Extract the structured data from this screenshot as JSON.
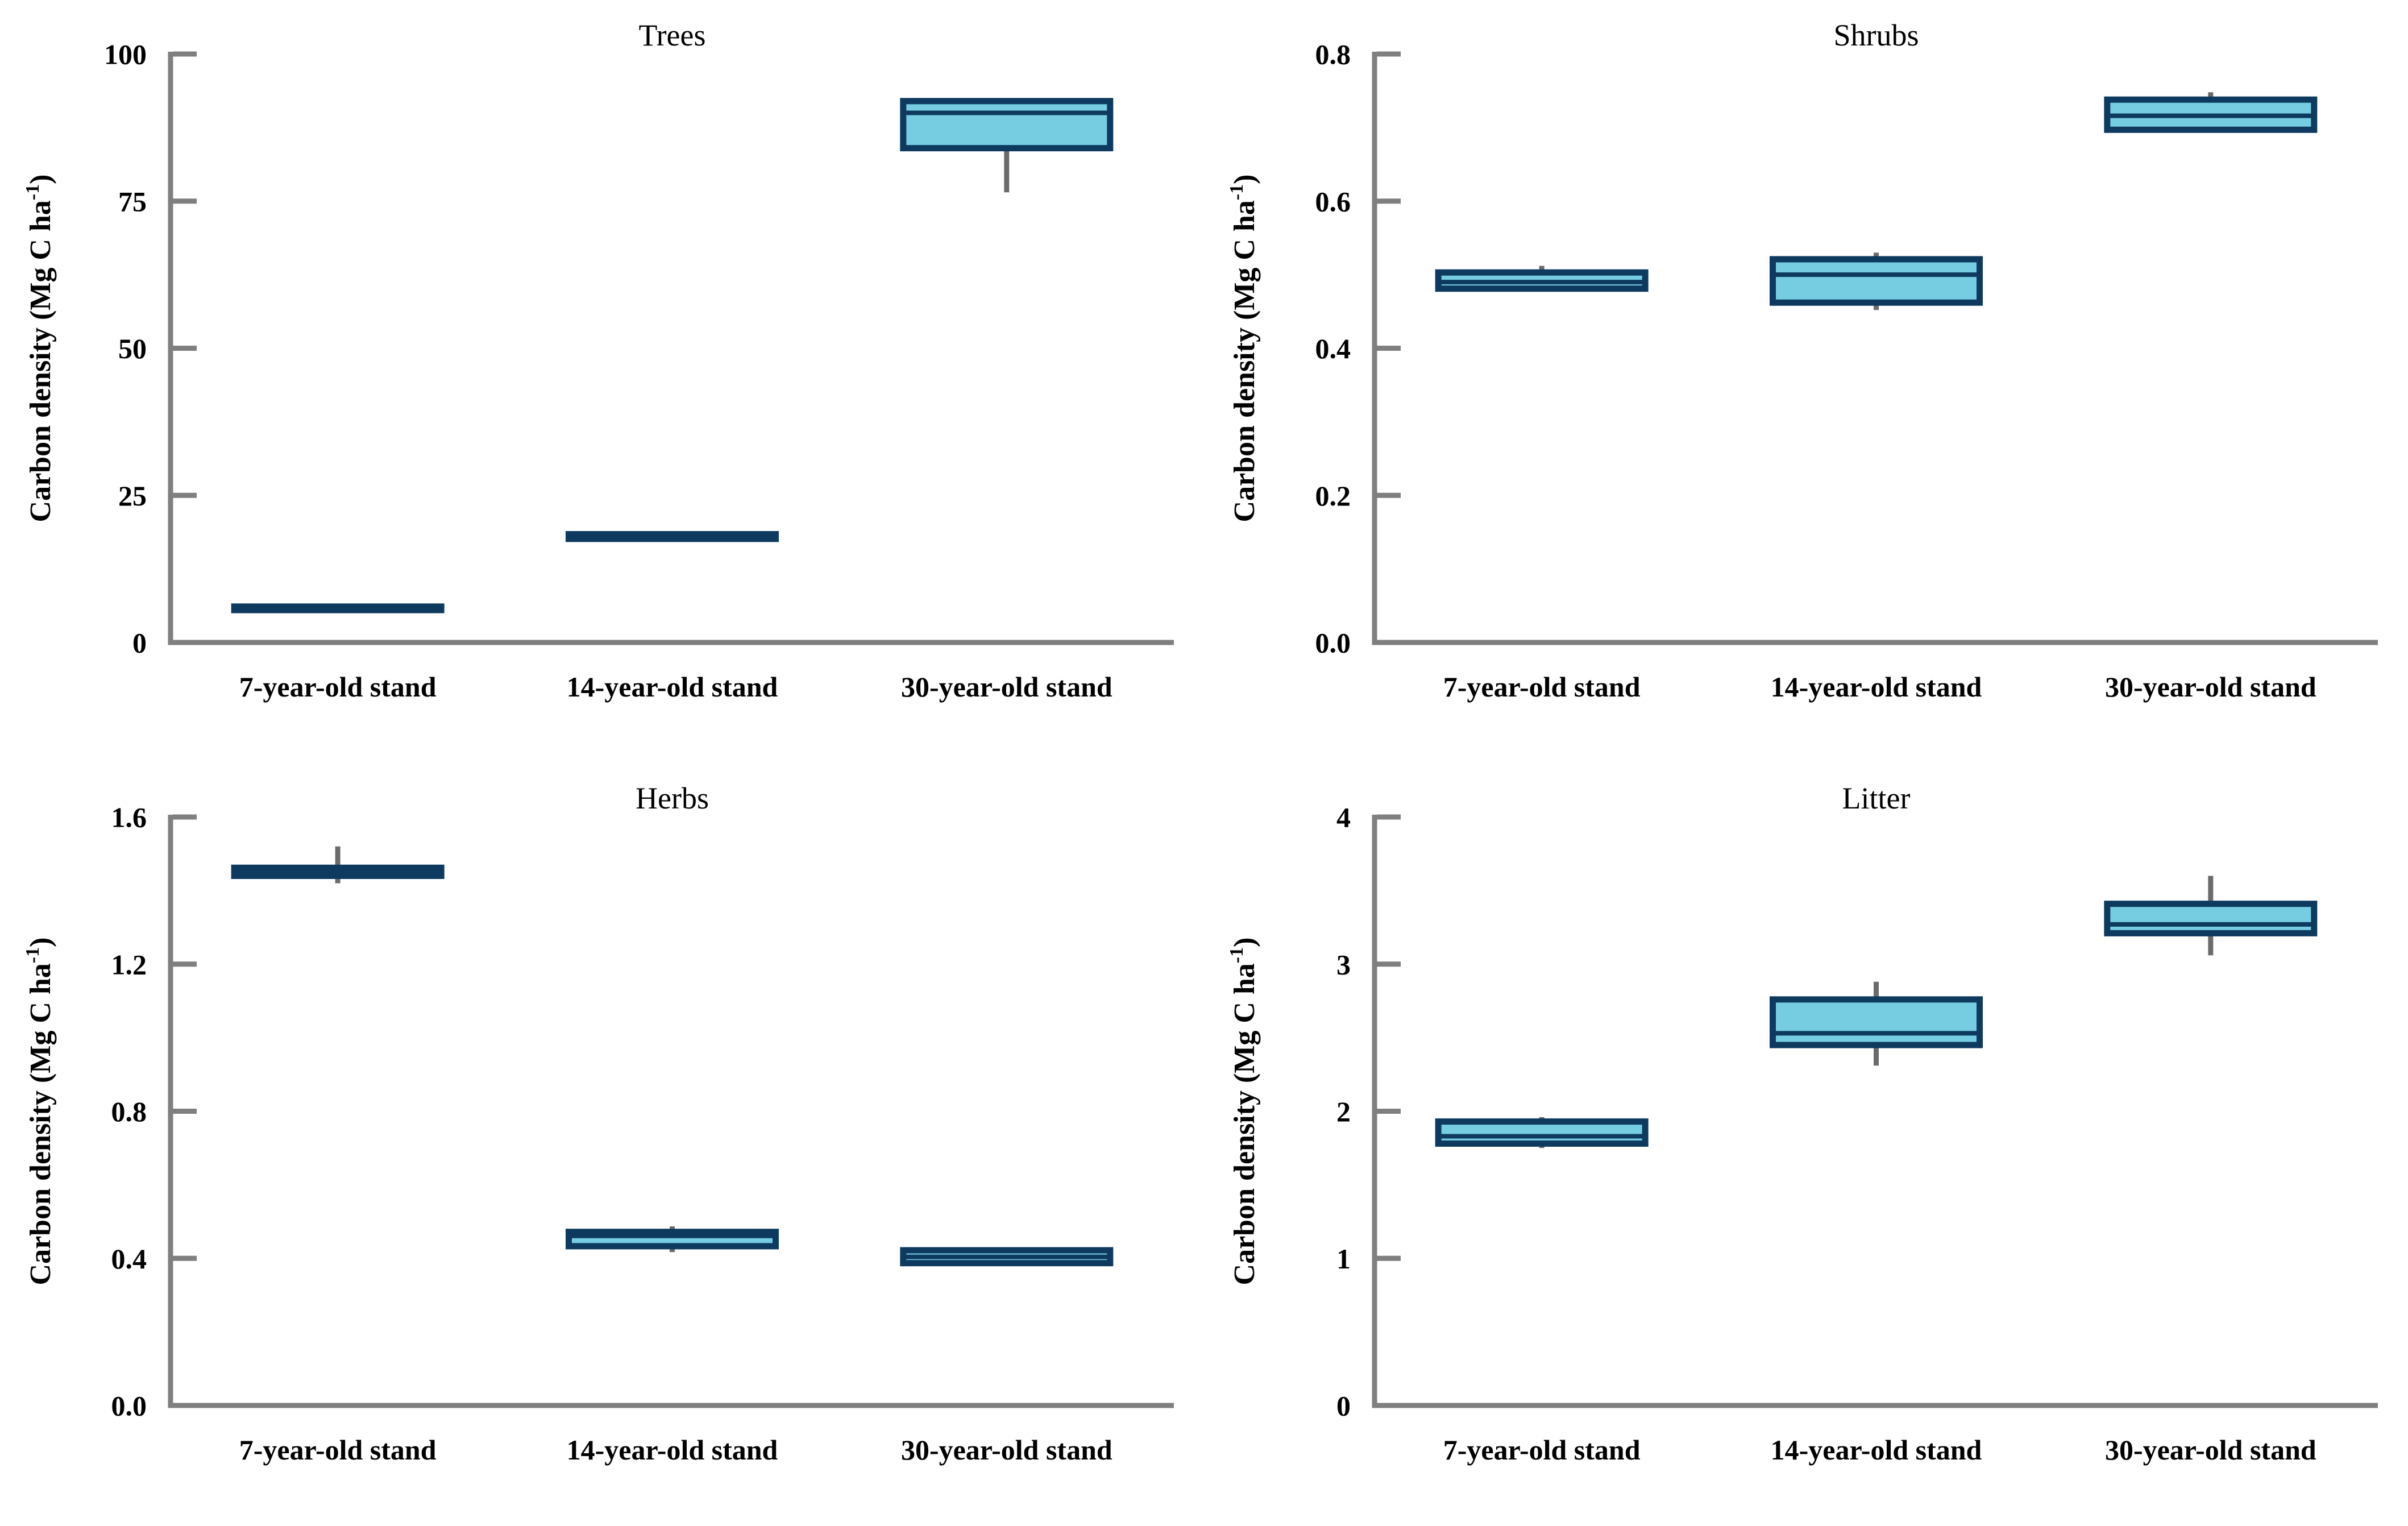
{
  "figure": {
    "ylabel": {
      "prefix": "Carbon density (Mg C ha",
      "sup": "-1",
      "suffix": ")"
    },
    "categories": [
      "7-year-old stand",
      "14-year-old stand",
      "30-year-old stand"
    ],
    "colors": {
      "box_fill": "#76CDE1",
      "box_border": "#0D3A5E",
      "whisker": "#6B6B6B",
      "axis": "#7F7F7F",
      "text": "#000000",
      "background": "#FFFFFF"
    }
  },
  "chart_data": [
    {
      "type": "box",
      "title": "Trees",
      "ylabel": "Carbon density (Mg C ha-1)",
      "ylim": [
        0,
        100
      ],
      "yticks": [
        {
          "v": 0,
          "label": "0"
        },
        {
          "v": 25,
          "label": "25"
        },
        {
          "v": 50,
          "label": "50"
        },
        {
          "v": 75,
          "label": "75"
        },
        {
          "v": 100,
          "label": "100"
        }
      ],
      "boxes": [
        {
          "category": "7-year-old stand",
          "whisker_low": 5.2,
          "q1": 5.5,
          "median": 5.8,
          "q3": 6.1,
          "whisker_high": 6.4
        },
        {
          "category": "14-year-old stand",
          "whisker_low": 17.4,
          "q1": 17.6,
          "median": 18.0,
          "q3": 18.4,
          "whisker_high": 18.6
        },
        {
          "category": "30-year-old stand",
          "whisker_low": 76.5,
          "q1": 84.0,
          "median": 90.0,
          "q3": 92.0,
          "whisker_high": 92.5
        }
      ]
    },
    {
      "type": "box",
      "title": "Shrubs",
      "ylabel": "Carbon density (Mg C ha-1)",
      "ylim": [
        0,
        0.8
      ],
      "yticks": [
        {
          "v": 0.0,
          "label": "0.0"
        },
        {
          "v": 0.2,
          "label": "0.2"
        },
        {
          "v": 0.4,
          "label": "0.4"
        },
        {
          "v": 0.6,
          "label": "0.6"
        },
        {
          "v": 0.8,
          "label": "0.8"
        }
      ],
      "boxes": [
        {
          "category": "7-year-old stand",
          "whisker_low": 0.478,
          "q1": 0.481,
          "median": 0.49,
          "q3": 0.503,
          "whisker_high": 0.512
        },
        {
          "category": "14-year-old stand",
          "whisker_low": 0.452,
          "q1": 0.462,
          "median": 0.5,
          "q3": 0.521,
          "whisker_high": 0.53
        },
        {
          "category": "30-year-old stand",
          "whisker_low": 0.697,
          "q1": 0.697,
          "median": 0.716,
          "q3": 0.738,
          "whisker_high": 0.748
        }
      ]
    },
    {
      "type": "box",
      "title": "Herbs",
      "ylabel": "Carbon density (Mg C ha-1)",
      "ylim": [
        0,
        1.6
      ],
      "yticks": [
        {
          "v": 0.0,
          "label": "0.0"
        },
        {
          "v": 0.4,
          "label": "0.4"
        },
        {
          "v": 0.8,
          "label": "0.8"
        },
        {
          "v": 1.2,
          "label": "1.2"
        },
        {
          "v": 1.6,
          "label": "1.6"
        }
      ],
      "boxes": [
        {
          "category": "7-year-old stand",
          "whisker_low": 1.42,
          "q1": 1.44,
          "median": 1.451,
          "q3": 1.462,
          "whisker_high": 1.52
        },
        {
          "category": "14-year-old stand",
          "whisker_low": 0.417,
          "q1": 0.433,
          "median": 0.461,
          "q3": 0.472,
          "whisker_high": 0.487
        },
        {
          "category": "30-year-old stand",
          "whisker_low": 0.387,
          "q1": 0.387,
          "median": 0.404,
          "q3": 0.422,
          "whisker_high": 0.422
        }
      ]
    },
    {
      "type": "box",
      "title": "Litter",
      "ylabel": "Carbon density (Mg C ha-1)",
      "ylim": [
        0,
        4
      ],
      "yticks": [
        {
          "v": 0,
          "label": "0"
        },
        {
          "v": 1,
          "label": "1"
        },
        {
          "v": 2,
          "label": "2"
        },
        {
          "v": 3,
          "label": "3"
        },
        {
          "v": 4,
          "label": "4"
        }
      ],
      "boxes": [
        {
          "category": "7-year-old stand",
          "whisker_low": 1.75,
          "q1": 1.78,
          "median": 1.83,
          "q3": 1.93,
          "whisker_high": 1.96
        },
        {
          "category": "14-year-old stand",
          "whisker_low": 2.31,
          "q1": 2.45,
          "median": 2.53,
          "q3": 2.76,
          "whisker_high": 2.88
        },
        {
          "category": "30-year-old stand",
          "whisker_low": 3.06,
          "q1": 3.21,
          "median": 3.27,
          "q3": 3.41,
          "whisker_high": 3.6
        }
      ]
    }
  ]
}
